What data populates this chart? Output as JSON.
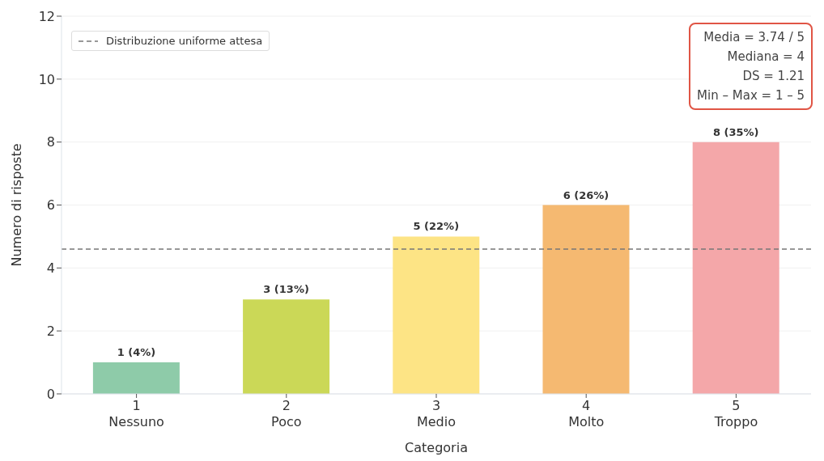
{
  "chart_data": {
    "type": "bar",
    "xlabel": "Categoria",
    "ylabel": "Numero di risposte",
    "categories": [
      "1\nNessuno",
      "2\nPoco",
      "3\nMedio",
      "4\nMolto",
      "5\nTroppo"
    ],
    "values": [
      1,
      3,
      5,
      6,
      8
    ],
    "colors": [
      "#8ecba9",
      "#cbd857",
      "#fde485",
      "#f5b971",
      "#f4a7a9"
    ],
    "value_labels": [
      "1  (4%)",
      "3  (13%)",
      "5  (22%)",
      "6  (26%)",
      "8  (35%)"
    ],
    "ylim": [
      0,
      12
    ],
    "yticks": [
      0,
      2,
      4,
      6,
      8,
      10,
      12
    ],
    "grid": "y",
    "legend": "top left",
    "ref_lines": [
      {
        "axis": "y",
        "value": 4.6,
        "label": "Distribuzione uniforme attesa",
        "color": "#777777",
        "line_style": "dashed"
      }
    ],
    "annotations": [
      "Media = 3.74 / 5",
      "Mediana = 4",
      "DS = 1.21",
      "Min – Max = 1 – 5"
    ]
  }
}
